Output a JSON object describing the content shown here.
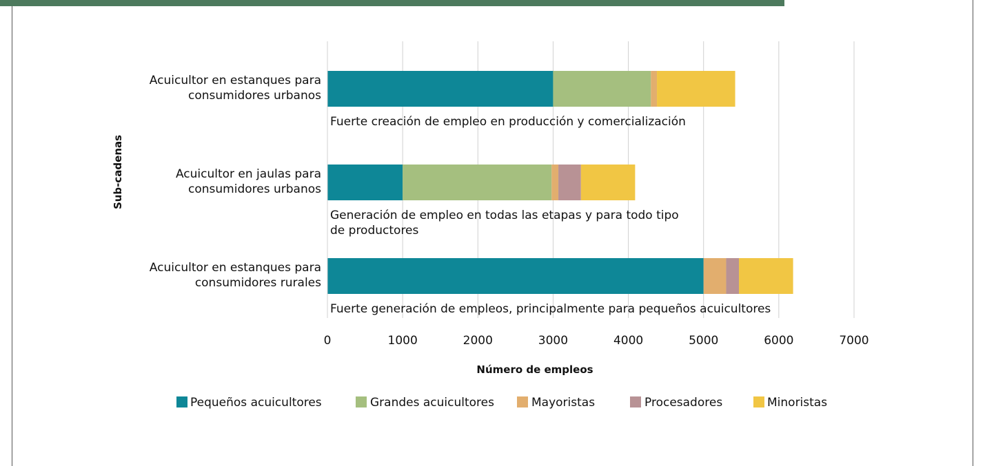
{
  "chart_data": {
    "type": "stacked_barh",
    "xlabel": "Número de empleos",
    "ylabel": "Sub-cadenas",
    "categories": [
      "Acuicultor en estanques para consumidores urbanos",
      "Acuicultor en jaulas para consumidores urbanos",
      "Acuicultor en estanques para consumidores rurales"
    ],
    "series": [
      {
        "name": "Pequeños acuicultores",
        "color": "#0e8797",
        "values": [
          3000,
          1000,
          5000
        ]
      },
      {
        "name": "Grandes acuicultores",
        "color": "#a5bf7f",
        "values": [
          1300,
          1980,
          0
        ]
      },
      {
        "name": "Mayoristas",
        "color": "#e2ae6e",
        "values": [
          80,
          90,
          300
        ]
      },
      {
        "name": "Procesadores",
        "color": "#b89295",
        "values": [
          0,
          300,
          170
        ]
      },
      {
        "name": "Minoristas",
        "color": "#f1c644",
        "values": [
          1040,
          720,
          720
        ]
      }
    ],
    "annotations": [
      "Fuerte creación de empleo en producción y comercialización",
      "Generación de empleo en todas las etapas y para todo tipo de productores",
      "Fuerte generación de empleos, principalmente para pequeños acuicultores"
    ],
    "xlim": [
      0,
      7000
    ],
    "xticks": [
      0,
      1000,
      2000,
      3000,
      4000,
      5000,
      6000,
      7000
    ],
    "grid": true,
    "legend": "bottom"
  }
}
